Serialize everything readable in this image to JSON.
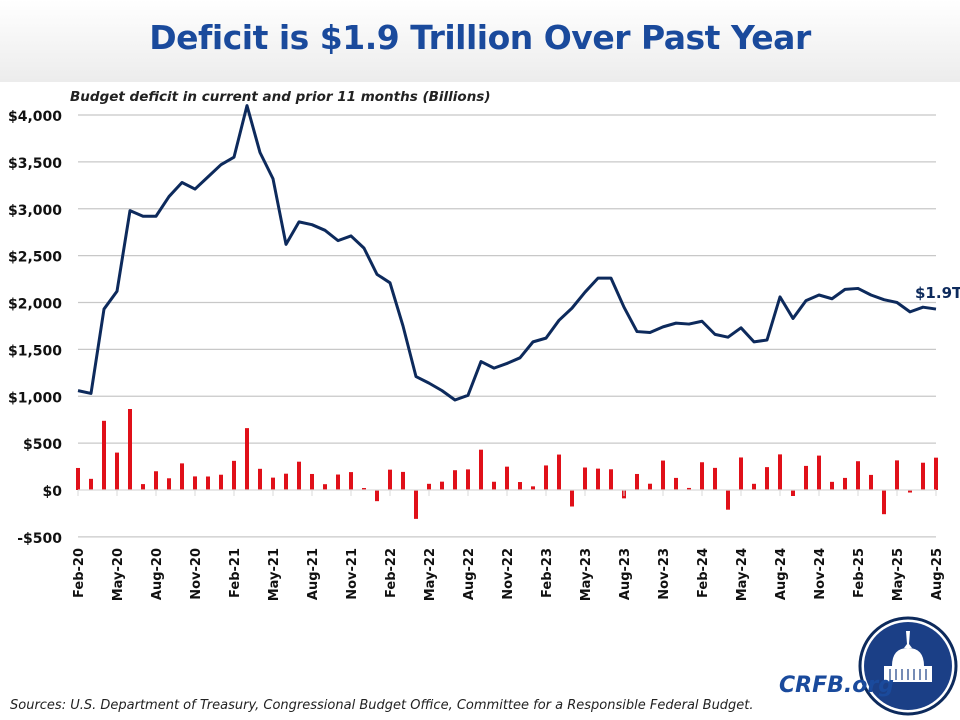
{
  "title": "Deficit is $1.9 Trillion Over Past Year",
  "sources": "Sources: U.S. Department of Treasury, Congressional Budget Office, Committee for a Responsible Federal Budget.",
  "brand": "CRFB.org",
  "logo_icon": "capitol-dome-seal-icon",
  "chart_data": {
    "type": "line+bar",
    "subtitle": "Budget deficit in current and prior 11 months (Billions)",
    "ylim": [
      -500,
      4000
    ],
    "yticks": [
      -500,
      0,
      500,
      1000,
      1500,
      2000,
      2500,
      3000,
      3500,
      4000
    ],
    "ytick_labels": [
      "-$500",
      "$0",
      "$500",
      "$1,000",
      "$1,500",
      "$2,000",
      "$2,500",
      "$3,000",
      "$3,500",
      "$4,000"
    ],
    "grid": true,
    "xtick_labels": [
      "Feb-20",
      "May-20",
      "Aug-20",
      "Nov-20",
      "Feb-21",
      "May-21",
      "Aug-21",
      "Nov-21",
      "Feb-22",
      "May-22",
      "Aug-22",
      "Nov-22",
      "Feb-23",
      "May-23",
      "Aug-23",
      "Nov-23",
      "Feb-24",
      "May-24",
      "Aug-24",
      "Nov-24",
      "Feb-25",
      "May-25",
      "Aug-25"
    ],
    "categories": [
      "Feb-20",
      "Mar-20",
      "Apr-20",
      "May-20",
      "Jun-20",
      "Jul-20",
      "Aug-20",
      "Sep-20",
      "Oct-20",
      "Nov-20",
      "Dec-20",
      "Jan-21",
      "Feb-21",
      "Mar-21",
      "Apr-21",
      "May-21",
      "Jun-21",
      "Jul-21",
      "Aug-21",
      "Sep-21",
      "Oct-21",
      "Nov-21",
      "Dec-21",
      "Jan-22",
      "Feb-22",
      "Mar-22",
      "Apr-22",
      "May-22",
      "Jun-22",
      "Jul-22",
      "Aug-22",
      "Sep-22",
      "Oct-22",
      "Nov-22",
      "Dec-22",
      "Jan-23",
      "Feb-23",
      "Mar-23",
      "Apr-23",
      "May-23",
      "Jun-23",
      "Jul-23",
      "Aug-23",
      "Sep-23",
      "Oct-23",
      "Nov-23",
      "Dec-23",
      "Jan-24",
      "Feb-24",
      "Mar-24",
      "Apr-24",
      "May-24",
      "Jun-24",
      "Jul-24",
      "Aug-24",
      "Sep-24",
      "Oct-24",
      "Nov-24",
      "Dec-24",
      "Jan-25",
      "Feb-25",
      "Mar-25",
      "Apr-25",
      "May-25",
      "Jun-25",
      "Jul-25",
      "Aug-25"
    ],
    "line_color": "#0d2a5c",
    "bar_color": "#e01019",
    "line_values": [
      1060,
      1030,
      1930,
      2120,
      2980,
      2920,
      2920,
      3130,
      3280,
      3210,
      3340,
      3470,
      3550,
      4100,
      3600,
      3320,
      2620,
      2860,
      2830,
      2770,
      2660,
      2710,
      2580,
      2300,
      2210,
      1750,
      1210,
      1140,
      1060,
      960,
      1010,
      1370,
      1300,
      1350,
      1410,
      1580,
      1620,
      1810,
      1940,
      2110,
      2260,
      2260,
      1950,
      1690,
      1680,
      1740,
      1780,
      1770,
      1800,
      1660,
      1630,
      1730,
      1580,
      1600,
      2060,
      1830,
      2020,
      2080,
      2040,
      2140,
      2150,
      2080,
      2030,
      2000,
      1900,
      1950,
      1930
    ],
    "bar_values": [
      235,
      119,
      738,
      399,
      864,
      63,
      200,
      125,
      284,
      145,
      144,
      163,
      311,
      660,
      226,
      132,
      174,
      302,
      171,
      62,
      165,
      191,
      21,
      -119,
      217,
      193,
      -308,
      66,
      89,
      211,
      220,
      430,
      88,
      249,
      85,
      39,
      262,
      378,
      -176,
      240,
      228,
      221,
      -89,
      171,
      67,
      314,
      129,
      22,
      296,
      236,
      -210,
      347,
      66,
      244,
      380,
      -64,
      257,
      367,
      87,
      129,
      307,
      161,
      -258,
      316,
      -27,
      291,
      345
    ],
    "annotation": "$1.9T"
  }
}
